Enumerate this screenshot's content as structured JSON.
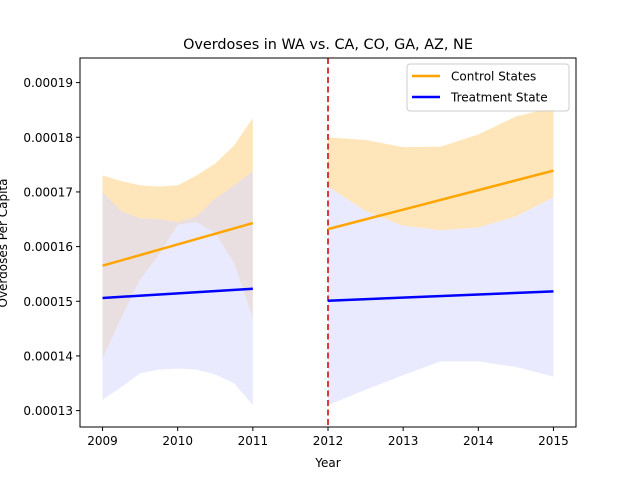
{
  "chart_data": {
    "type": "line",
    "title": "Overdoses in WA vs. CA, CO, GA, AZ, NE",
    "xlabel": "Year",
    "ylabel": "Overdoses Per Capita",
    "xlim": [
      2008.7,
      2015.3
    ],
    "ylim": [
      0.000127,
      0.0001945
    ],
    "x_ticks": [
      2009,
      2010,
      2011,
      2012,
      2013,
      2014,
      2015
    ],
    "y_ticks": [
      "0.00013",
      "0.00014",
      "0.00015",
      "0.00016",
      "0.00017",
      "0.00018",
      "0.00019"
    ],
    "y_tick_values": [
      0.00013,
      0.00014,
      0.00015,
      0.00016,
      0.00017,
      0.00018,
      0.00019
    ],
    "intervention": {
      "x": 2012,
      "color": "#d62728",
      "style": "dashed"
    },
    "legend": {
      "placement": "top-right",
      "entries": [
        {
          "label": "Control States",
          "color": "#ffa500"
        },
        {
          "label": "Treatment State",
          "color": "#0000ff"
        }
      ]
    },
    "series": [
      {
        "name": "Control States",
        "color": "#ffa500",
        "band_color": "#ffe3b3",
        "segments": [
          {
            "x": [
              2009,
              2011
            ],
            "y": [
              0.0001565,
              0.0001643
            ],
            "band": {
              "x": [
                2009,
                2009.25,
                2009.5,
                2009.75,
                2010,
                2010.25,
                2010.5,
                2010.75,
                2011
              ],
              "upper": [
                0.000173,
                0.000172,
                0.0001712,
                0.000171,
                0.0001712,
                0.000173,
                0.0001752,
                0.0001785,
                0.0001835
              ],
              "lower": [
                0.0001395,
                0.000147,
                0.000154,
                0.0001585,
                0.000164,
                0.0001645,
                0.0001625,
                0.000157,
                0.000147
              ]
            }
          },
          {
            "x": [
              2012,
              2015
            ],
            "y": [
              0.0001632,
              0.0001739
            ],
            "band": {
              "x": [
                2012,
                2012.5,
                2013,
                2013.5,
                2014,
                2014.5,
                2015
              ],
              "upper": [
                0.00018,
                0.0001795,
                0.0001782,
                0.0001783,
                0.0001805,
                0.0001838,
                0.0001855
              ],
              "lower": [
                0.000171,
                0.0001665,
                0.0001638,
                0.000163,
                0.0001635,
                0.0001655,
                0.000169
              ]
            }
          }
        ]
      },
      {
        "name": "Treatment State",
        "color": "#0000ff",
        "band_color": "#d9d9ff",
        "segments": [
          {
            "x": [
              2009,
              2011
            ],
            "y": [
              0.0001506,
              0.0001523
            ],
            "band": {
              "x": [
                2009,
                2009.25,
                2009.5,
                2009.75,
                2010,
                2010.25,
                2010.5,
                2010.75,
                2011
              ],
              "upper": [
                0.00017,
                0.0001665,
                0.0001652,
                0.000165,
                0.0001645,
                0.0001655,
                0.0001688,
                0.0001712,
                0.0001738
              ],
              "lower": [
                0.000132,
                0.0001343,
                0.0001368,
                0.0001375,
                0.0001377,
                0.0001375,
                0.0001366,
                0.000135,
                0.000131
              ]
            }
          },
          {
            "x": [
              2012,
              2015
            ],
            "y": [
              0.0001501,
              0.0001518
            ],
            "band": {
              "x": [
                2012,
                2012.5,
                2013,
                2013.5,
                2014,
                2014.5,
                2015
              ],
              "upper": [
                0.000171,
                0.0001665,
                0.0001638,
                0.000163,
                0.0001635,
                0.0001655,
                0.000169
              ],
              "lower": [
                0.000131,
                0.0001338,
                0.0001365,
                0.000139,
                0.000139,
                0.000138,
                0.0001362
              ]
            }
          }
        ]
      }
    ]
  }
}
